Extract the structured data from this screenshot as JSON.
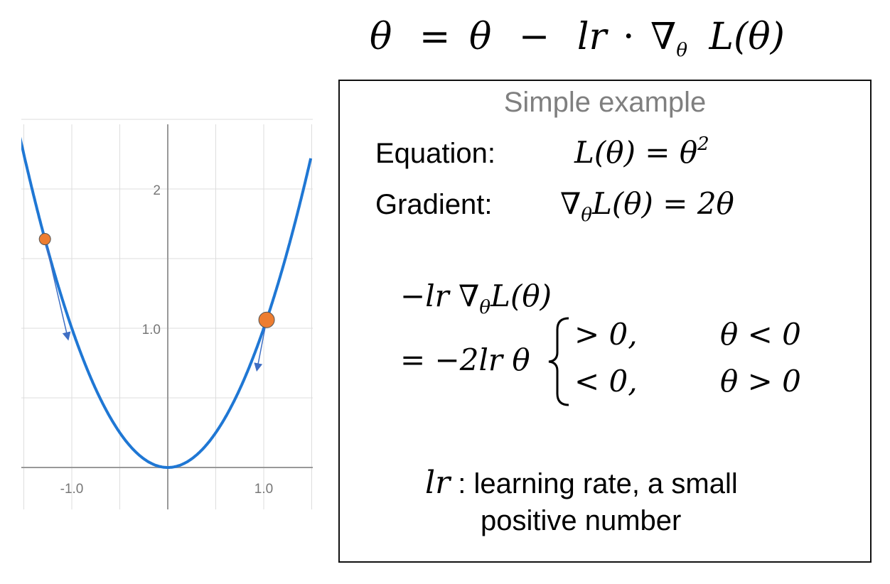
{
  "header_equation": {
    "theta_left": "θ",
    "eq1": "=",
    "theta_right": "θ",
    "minus": "−",
    "lr": "lr",
    "dot": "·",
    "nabla": "∇",
    "sub": "θ",
    "loss": "L(θ)"
  },
  "plot": {
    "curve_color": "#1f77d4",
    "point_color": "#ed7d31",
    "arrow_color": "#3f6fc4",
    "grid_color": "#dddddd",
    "x_ticks": [
      "-1.0",
      "1.0"
    ],
    "y_ticks": [
      "2",
      "1.0"
    ],
    "function": "theta^2",
    "points": [
      {
        "x": -1.28,
        "y": 1.64
      },
      {
        "x": 1.03,
        "y": 1.06
      }
    ]
  },
  "example_box": {
    "title": "Simple example",
    "equation_label": "Equation:",
    "equation_lhs": "L(θ) = θ",
    "equation_exp": "2",
    "gradient_label": "Gradient:",
    "gradient_nabla": "∇",
    "gradient_sub": "θ",
    "gradient_rhs": "L(θ) = 2θ",
    "update_line1_prefix": "−lr ∇",
    "update_line1_sub": "θ",
    "update_line1_suffix": "L(θ)",
    "update_line2": "= −2lr θ",
    "case1_value": "> 0,",
    "case1_condition": "θ < 0",
    "case2_value": "< 0,",
    "case2_condition": "θ > 0",
    "lr_symbol": "lr",
    "lr_text_1": " : learning rate, a small",
    "lr_text_2": "positive number"
  }
}
